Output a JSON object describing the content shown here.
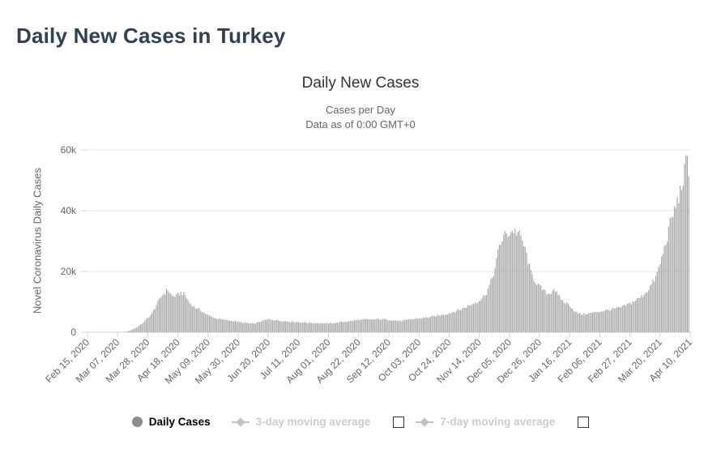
{
  "page": {
    "title": "Daily New Cases in Turkey"
  },
  "chart": {
    "title": "Daily New Cases",
    "subtitle_line1": "Cases per Day",
    "subtitle_line2": "Data as of 0:00 GMT+0",
    "y_axis_title": "Novel Coronavirus Daily Cases"
  },
  "legend": {
    "items": [
      {
        "label": "Daily Cases",
        "marker": "circle",
        "marker_color": "#8c8c8c",
        "label_color": "#000000",
        "active": true,
        "has_checkbox": false
      },
      {
        "label": "3-day moving average",
        "marker": "line-diamond",
        "marker_color": "#c2c2c2",
        "label_color": "#cccccc",
        "active": false,
        "has_checkbox": true,
        "checked": false
      },
      {
        "label": "7-day moving average",
        "marker": "line-diamond",
        "marker_color": "#c2c2c2",
        "label_color": "#cccccc",
        "active": false,
        "has_checkbox": true,
        "checked": false
      }
    ]
  },
  "colors": {
    "page_title": "#333f52",
    "chart_title": "#333333",
    "subtitle": "#666666",
    "axis_label": "#666666",
    "gridline": "#e6e6e6",
    "axis_line": "#ccd6eb",
    "bar": "#a6a6a6",
    "background": "#ffffff"
  },
  "chart_data": {
    "type": "bar",
    "title": "Daily New Cases",
    "subtitle": "Cases per Day — Data as of 0:00 GMT+0",
    "series_name": "Daily Cases",
    "xlabel": "",
    "ylabel": "Novel Coronavirus Daily Cases",
    "ylim": [
      0,
      60000
    ],
    "ytick_values": [
      0,
      20000,
      40000,
      60000
    ],
    "ytick_labels": [
      "0",
      "20k",
      "40k",
      "60k"
    ],
    "xtick_labels": [
      "Feb 15, 2020",
      "Mar 07, 2020",
      "Mar 28, 2020",
      "Apr 18, 2020",
      "May 09, 2020",
      "May 30, 2020",
      "Jun 20, 2020",
      "Jul 11, 2020",
      "Aug 01, 2020",
      "Aug 22, 2020",
      "Sep 12, 2020",
      "Oct 03, 2020",
      "Oct 24, 2020",
      "Nov 14, 2020",
      "Dec 05, 2020",
      "Dec 26, 2020",
      "Jan 16, 2021",
      "Feb 06, 2021",
      "Feb 27, 2021",
      "Mar 20, 2021",
      "Apr 10, 2021"
    ],
    "start_date": "Feb 15, 2020",
    "end_date": "Apr 10, 2021",
    "xtick_interval_days": 21,
    "total_days": 420,
    "grid": "horizontal",
    "legend_position": "bottom",
    "bar_color": "#a6a6a6",
    "noise": 0.06,
    "envelope_points": [
      [
        0,
        0
      ],
      [
        24,
        0
      ],
      [
        28,
        250
      ],
      [
        31,
        800
      ],
      [
        35,
        1800
      ],
      [
        38,
        2800
      ],
      [
        41,
        4200
      ],
      [
        45,
        6200
      ],
      [
        48,
        9000
      ],
      [
        52,
        12200
      ],
      [
        56,
        14000
      ],
      [
        59,
        11800
      ],
      [
        62,
        12000
      ],
      [
        65,
        13100
      ],
      [
        68,
        12200
      ],
      [
        71,
        9700
      ],
      [
        75,
        8200
      ],
      [
        79,
        7100
      ],
      [
        84,
        5600
      ],
      [
        89,
        4600
      ],
      [
        95,
        4100
      ],
      [
        102,
        3700
      ],
      [
        109,
        3100
      ],
      [
        116,
        2800
      ],
      [
        123,
        3900
      ],
      [
        127,
        4300
      ],
      [
        134,
        3800
      ],
      [
        141,
        3500
      ],
      [
        148,
        3300
      ],
      [
        155,
        3100
      ],
      [
        162,
        3000
      ],
      [
        169,
        2900
      ],
      [
        176,
        3300
      ],
      [
        183,
        3700
      ],
      [
        190,
        4100
      ],
      [
        197,
        4200
      ],
      [
        204,
        4300
      ],
      [
        211,
        4100
      ],
      [
        218,
        3700
      ],
      [
        225,
        4200
      ],
      [
        232,
        4600
      ],
      [
        239,
        5000
      ],
      [
        246,
        5600
      ],
      [
        253,
        6400
      ],
      [
        260,
        7500
      ],
      [
        267,
        9000
      ],
      [
        274,
        10800
      ],
      [
        278,
        13000
      ],
      [
        281,
        16500
      ],
      [
        284,
        21000
      ],
      [
        287,
        28500
      ],
      [
        290,
        31500
      ],
      [
        294,
        32800
      ],
      [
        297,
        33500
      ],
      [
        300,
        32800
      ],
      [
        303,
        30000
      ],
      [
        306,
        25500
      ],
      [
        309,
        19500
      ],
      [
        312,
        16800
      ],
      [
        315,
        15000
      ],
      [
        319,
        13200
      ],
      [
        322,
        12600
      ],
      [
        325,
        14500
      ],
      [
        328,
        12000
      ],
      [
        332,
        9900
      ],
      [
        336,
        9000
      ],
      [
        340,
        6600
      ],
      [
        344,
        5900
      ],
      [
        351,
        6300
      ],
      [
        358,
        6900
      ],
      [
        365,
        7500
      ],
      [
        372,
        8200
      ],
      [
        379,
        9700
      ],
      [
        386,
        11700
      ],
      [
        390,
        13600
      ],
      [
        393,
        15800
      ],
      [
        396,
        18000
      ],
      [
        399,
        22500
      ],
      [
        403,
        29500
      ],
      [
        407,
        37500
      ],
      [
        410,
        41500
      ],
      [
        413,
        46000
      ],
      [
        416,
        52500
      ],
      [
        417,
        55900
      ],
      [
        418,
        55400
      ],
      [
        419,
        51500
      ]
    ]
  }
}
